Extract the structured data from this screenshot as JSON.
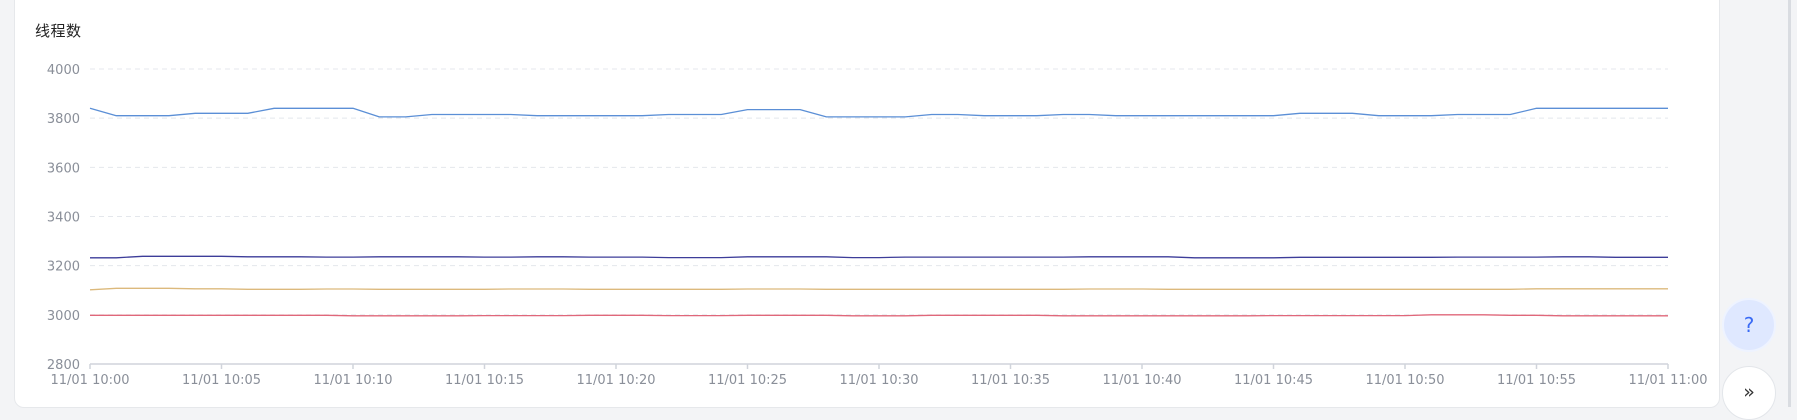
{
  "panel": {
    "title": "线程数"
  },
  "buttons": {
    "help_label": "?",
    "collapse_label": "»"
  },
  "chart_data": {
    "type": "line",
    "title": "线程数",
    "xlabel": "",
    "ylabel": "",
    "ylim": [
      2800,
      4000
    ],
    "yticks": [
      2800,
      3000,
      3200,
      3400,
      3600,
      3800,
      4000
    ],
    "xtick_labels": [
      "11/01 10:00",
      "11/01 10:05",
      "11/01 10:10",
      "11/01 10:15",
      "11/01 10:20",
      "11/01 10:25",
      "11/01 10:30",
      "11/01 10:35",
      "11/01 10:40",
      "11/01 10:45",
      "11/01 10:50",
      "11/01 10:55",
      "11/01 11:00"
    ],
    "x_minutes": [
      0,
      1,
      2,
      3,
      4,
      5,
      6,
      7,
      8,
      9,
      10,
      11,
      12,
      13,
      14,
      15,
      16,
      17,
      18,
      19,
      20,
      21,
      22,
      23,
      24,
      25,
      26,
      27,
      28,
      29,
      30,
      31,
      32,
      33,
      34,
      35,
      36,
      37,
      38,
      39,
      40,
      41,
      42,
      43,
      44,
      45,
      46,
      47,
      48,
      49,
      50,
      51,
      52,
      53,
      54,
      55,
      56,
      57,
      58,
      59,
      60
    ],
    "grid": true,
    "legend": "none",
    "series": [
      {
        "color": "#5b8fd6",
        "values": [
          3840,
          3810,
          3810,
          3810,
          3820,
          3820,
          3820,
          3840,
          3840,
          3840,
          3840,
          3805,
          3805,
          3815,
          3815,
          3815,
          3815,
          3810,
          3810,
          3810,
          3810,
          3810,
          3815,
          3815,
          3815,
          3835,
          3835,
          3835,
          3805,
          3805,
          3805,
          3805,
          3815,
          3815,
          3810,
          3810,
          3810,
          3815,
          3815,
          3810,
          3810,
          3810,
          3810,
          3810,
          3810,
          3810,
          3820,
          3820,
          3820,
          3810,
          3810,
          3810,
          3815,
          3815,
          3815,
          3840,
          3840,
          3840,
          3840,
          3840,
          3840
        ]
      },
      {
        "color": "#3d3d99",
        "values": [
          3232,
          3232,
          3238,
          3238,
          3238,
          3238,
          3236,
          3236,
          3236,
          3235,
          3235,
          3236,
          3236,
          3236,
          3236,
          3235,
          3235,
          3236,
          3236,
          3235,
          3235,
          3235,
          3233,
          3233,
          3233,
          3236,
          3236,
          3236,
          3236,
          3233,
          3233,
          3235,
          3235,
          3235,
          3235,
          3235,
          3235,
          3235,
          3236,
          3236,
          3236,
          3236,
          3232,
          3232,
          3232,
          3232,
          3234,
          3234,
          3234,
          3234,
          3234,
          3234,
          3235,
          3235,
          3235,
          3235,
          3236,
          3236,
          3234,
          3234,
          3234
        ]
      },
      {
        "color": "#dcb97c",
        "values": [
          3102,
          3108,
          3108,
          3108,
          3106,
          3106,
          3104,
          3104,
          3104,
          3105,
          3105,
          3104,
          3104,
          3104,
          3104,
          3104,
          3105,
          3105,
          3105,
          3104,
          3104,
          3104,
          3104,
          3104,
          3104,
          3105,
          3105,
          3105,
          3104,
          3104,
          3104,
          3104,
          3104,
          3104,
          3104,
          3104,
          3104,
          3104,
          3105,
          3105,
          3105,
          3104,
          3104,
          3104,
          3104,
          3104,
          3104,
          3104,
          3104,
          3104,
          3104,
          3104,
          3104,
          3104,
          3104,
          3106,
          3106,
          3106,
          3106,
          3106,
          3106
        ]
      },
      {
        "color": "#e0677a",
        "values": [
          2998,
          2998,
          2998,
          2998,
          2998,
          2998,
          2998,
          2998,
          2998,
          2998,
          2996,
          2996,
          2996,
          2996,
          2996,
          2997,
          2997,
          2997,
          2997,
          2998,
          2998,
          2998,
          2997,
          2997,
          2997,
          2998,
          2998,
          2998,
          2998,
          2996,
          2996,
          2996,
          2998,
          2998,
          2998,
          2998,
          2998,
          2996,
          2996,
          2996,
          2996,
          2996,
          2996,
          2996,
          2996,
          2997,
          2997,
          2997,
          2997,
          2997,
          2997,
          3000,
          3000,
          3000,
          2998,
          2998,
          2996,
          2996,
          2996,
          2996,
          2996
        ]
      }
    ]
  },
  "colors": {
    "axis": "#d0d4db",
    "grid": "#e4e7ec",
    "tick_text": "#8a8f99"
  }
}
